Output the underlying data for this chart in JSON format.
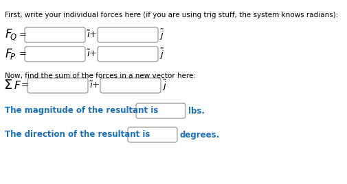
{
  "bg_color": "#ffffff",
  "text_color": "#000000",
  "blue_color": "#1a6fbd",
  "header_text": "First, write your individual forces here (if you are using trig stuff, the system knows radians):",
  "sum_header": "Now, find the sum of the forces in a new vector here:",
  "mag_text": "The magnitude of the resultant is",
  "mag_suffix": "lbs.",
  "dir_text": "The direction of the resultant is",
  "dir_suffix": "degrees.",
  "box_edgecolor": "#999999",
  "box_facecolor": "#ffffff",
  "header_fontsize": 7.5,
  "body_fontsize": 8.5,
  "label_fontsize": 11,
  "sigma_fontsize": 14,
  "hat_fontsize": 9.5
}
